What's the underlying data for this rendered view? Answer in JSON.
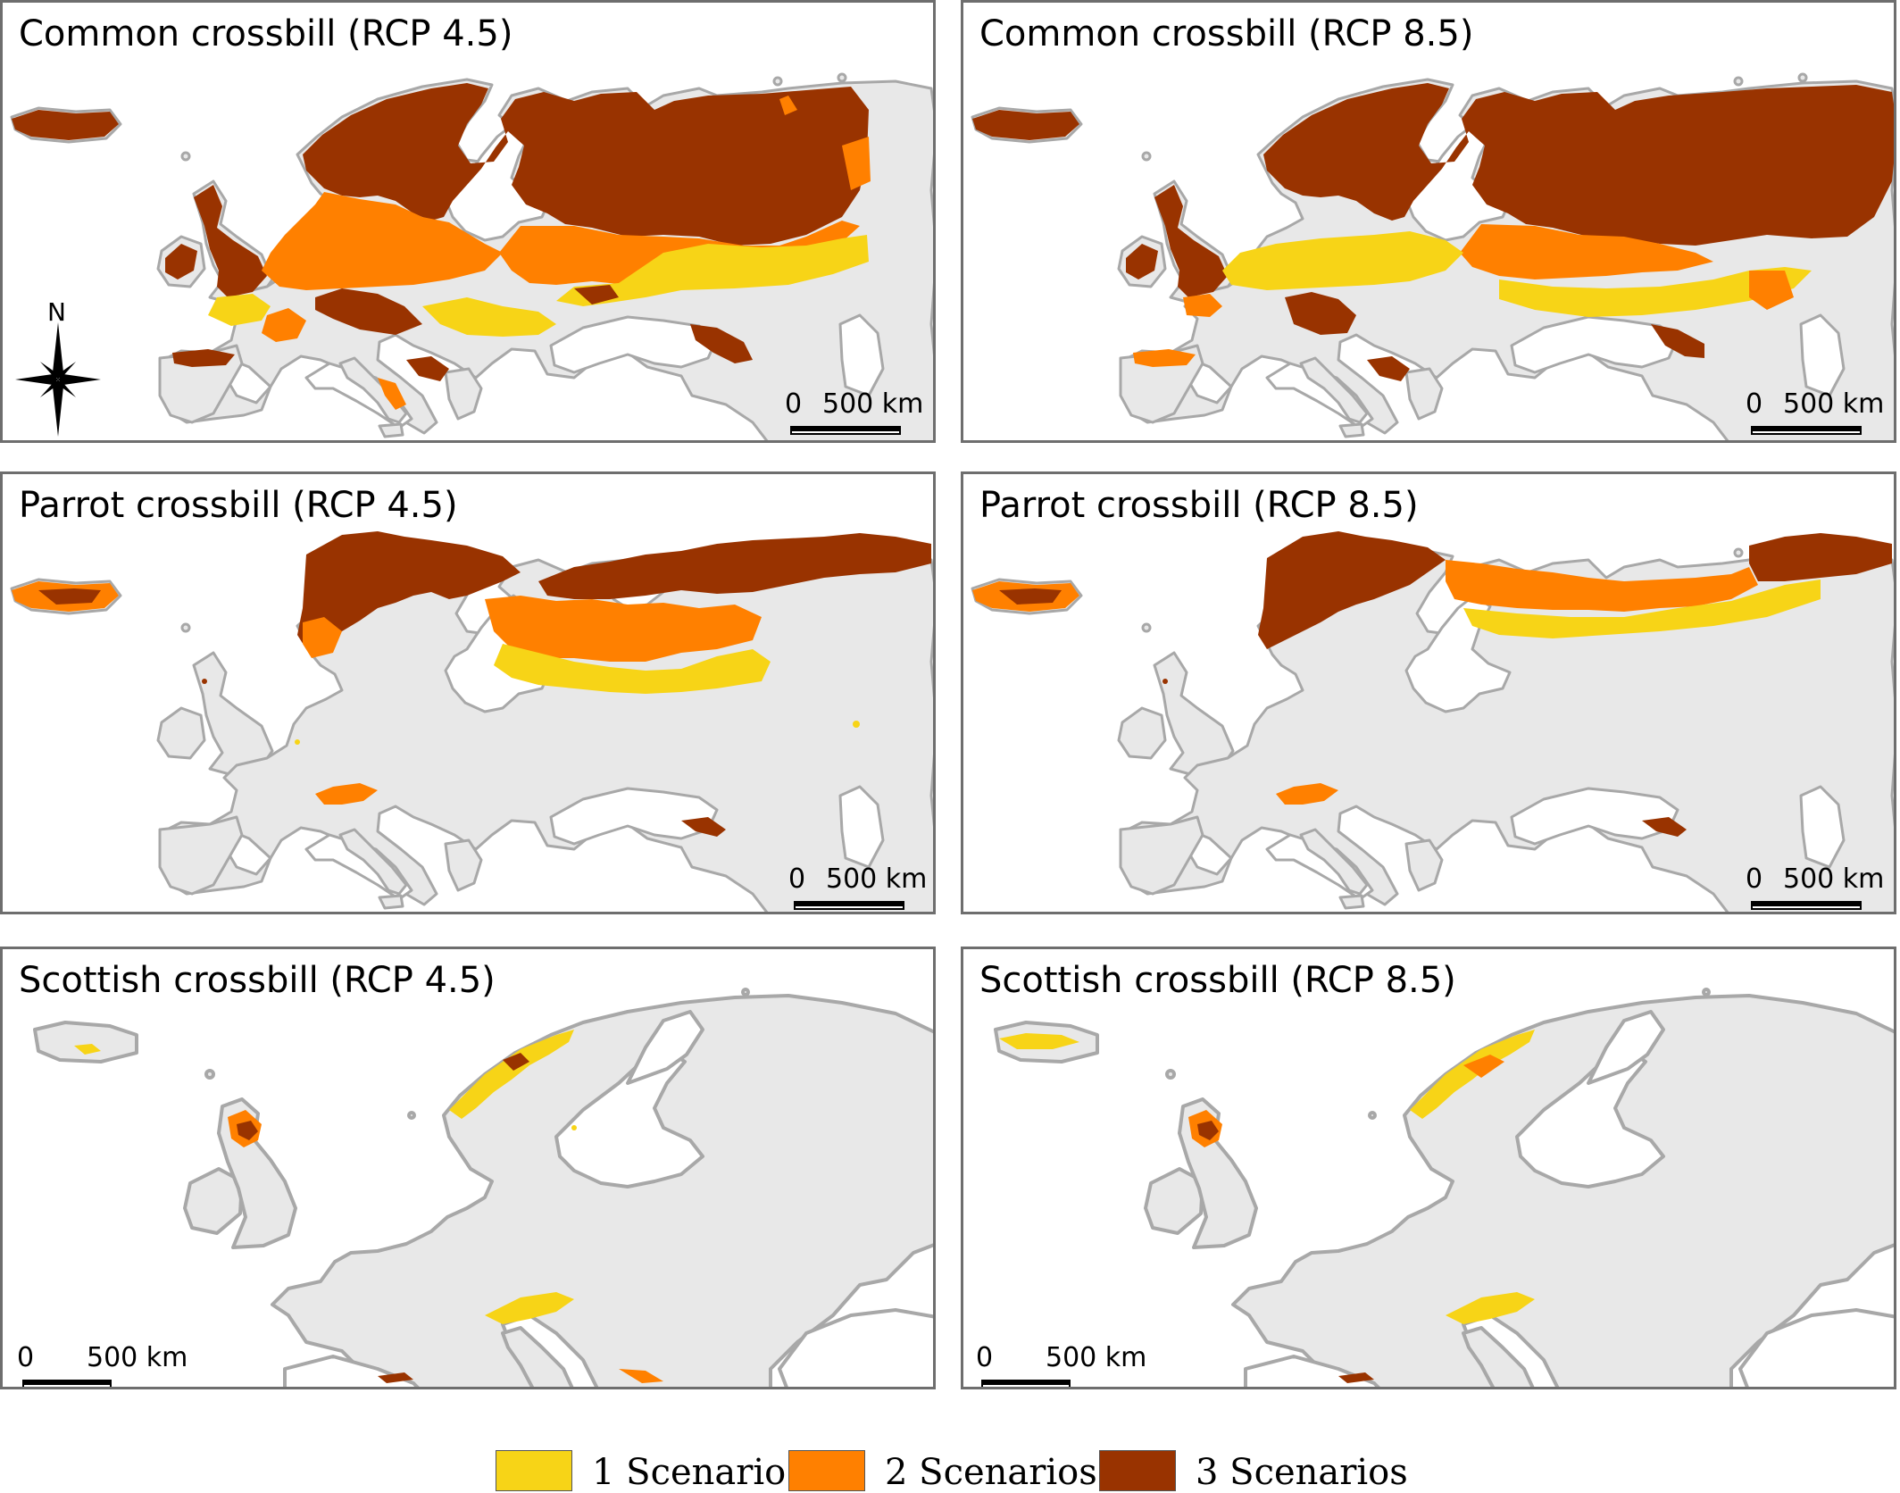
{
  "colors": {
    "land": "#e8e8e8",
    "coast": "#a8a8a8",
    "border": "#6e6e6e",
    "scenario1": "#f7d417",
    "scenario2": "#ff8000",
    "scenario3": "#993300"
  },
  "panels": [
    {
      "title": "Common crossbill (RCP 4.5)",
      "species": "common",
      "scenario": "4.5",
      "scale_zero": "0",
      "scale_label": "500 km"
    },
    {
      "title": "Common crossbill (RCP 8.5)",
      "species": "common",
      "scenario": "8.5",
      "scale_zero": "0",
      "scale_label": "500 km"
    },
    {
      "title": "Parrot crossbill (RCP 4.5)",
      "species": "parrot",
      "scenario": "4.5",
      "scale_zero": "0",
      "scale_label": "500 km"
    },
    {
      "title": "Parrot crossbill (RCP 8.5)",
      "species": "parrot",
      "scenario": "8.5",
      "scale_zero": "0",
      "scale_label": "500 km"
    },
    {
      "title": "Scottish crossbill (RCP 4.5)",
      "species": "scottish",
      "scenario": "4.5",
      "scale_zero": "0",
      "scale_label": "500 km"
    },
    {
      "title": "Scottish crossbill (RCP 8.5)",
      "species": "scottish",
      "scenario": "8.5",
      "scale_zero": "0",
      "scale_label": "500 km"
    }
  ],
  "north_arrow": {
    "label": "N",
    "icon": "compass-star-icon"
  },
  "legend": [
    {
      "label": "1 Scenario",
      "color_key": "scenario1"
    },
    {
      "label": "2 Scenarios",
      "color_key": "scenario2"
    },
    {
      "label": "3 Scenarios",
      "color_key": "scenario3"
    }
  ]
}
